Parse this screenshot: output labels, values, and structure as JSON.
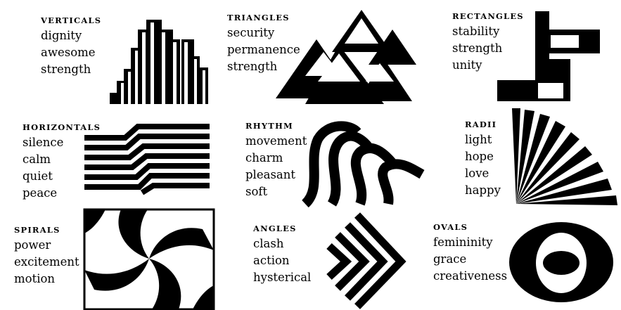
{
  "colors": {
    "ink": "#000000",
    "paper": "#ffffff"
  },
  "cells": {
    "verticals": {
      "title": "VERTICALS",
      "words": [
        "dignity",
        "awesome",
        "strength"
      ],
      "icon": "verticals-icon"
    },
    "triangles": {
      "title": "TRIANGLES",
      "words": [
        "security",
        "permanence",
        "strength"
      ],
      "icon": "triangles-icon"
    },
    "rectangles": {
      "title": "RECTANGLES",
      "words": [
        "stability",
        "strength",
        "unity"
      ],
      "icon": "rectangles-icon"
    },
    "horizontals": {
      "title": "HORIZONTALS",
      "words": [
        "silence",
        "calm",
        "quiet",
        "peace"
      ],
      "icon": "horizontals-icon"
    },
    "rhythm": {
      "title": "RHYTHM",
      "words": [
        "movement",
        "charm",
        "pleasant",
        "soft"
      ],
      "icon": "rhythm-icon"
    },
    "radii": {
      "title": "RADII",
      "words": [
        "light",
        "hope",
        "love",
        "happy"
      ],
      "icon": "radii-icon"
    },
    "spirals": {
      "title": "SPIRALS",
      "words": [
        "power",
        "excitement",
        "motion"
      ],
      "icon": "spirals-icon"
    },
    "angles": {
      "title": "ANGLES",
      "words": [
        "clash",
        "action",
        "hysterical"
      ],
      "icon": "angles-icon"
    },
    "ovals": {
      "title": "OVALS",
      "words": [
        "femininity",
        "grace",
        "creativeness"
      ],
      "icon": "ovals-icon"
    }
  }
}
